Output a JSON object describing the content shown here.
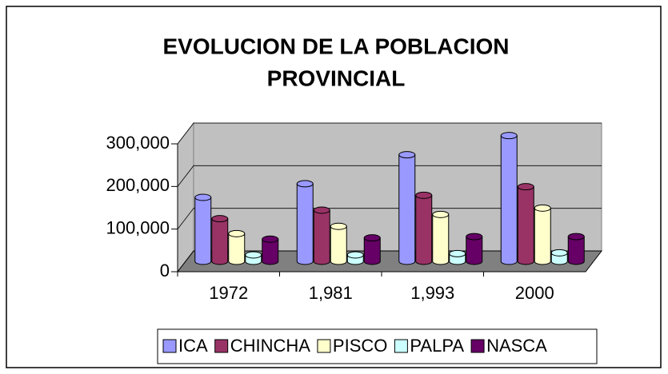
{
  "chart_data": {
    "type": "bar3d",
    "title": "EVOLUCION DE LA POBLACION PROVINCIAL",
    "categories": [
      "1972",
      "1,981",
      "1,993",
      "2000"
    ],
    "series": [
      {
        "name": "ICA",
        "color": "#9999ff",
        "values": [
          150000,
          182000,
          250000,
          295000
        ]
      },
      {
        "name": "CHINCHA",
        "color": "#993366",
        "values": [
          100000,
          120000,
          155000,
          175000
        ]
      },
      {
        "name": "PISCO",
        "color": "#ffffcc",
        "values": [
          65000,
          82000,
          110000,
          125000
        ]
      },
      {
        "name": "PALPA",
        "color": "#ccffff",
        "values": [
          15000,
          15000,
          18000,
          20000
        ]
      },
      {
        "name": "NASCA",
        "color": "#660066",
        "values": [
          52000,
          55000,
          58000,
          58000
        ]
      }
    ],
    "ylim": [
      0,
      300000
    ],
    "yticks": [
      0,
      {
        "value": 100000,
        "label": "100,000"
      },
      {
        "value": 200000,
        "label": "200,000"
      },
      {
        "value": 300000,
        "label": "300,000"
      }
    ],
    "grid": true,
    "legend": "bottom"
  }
}
